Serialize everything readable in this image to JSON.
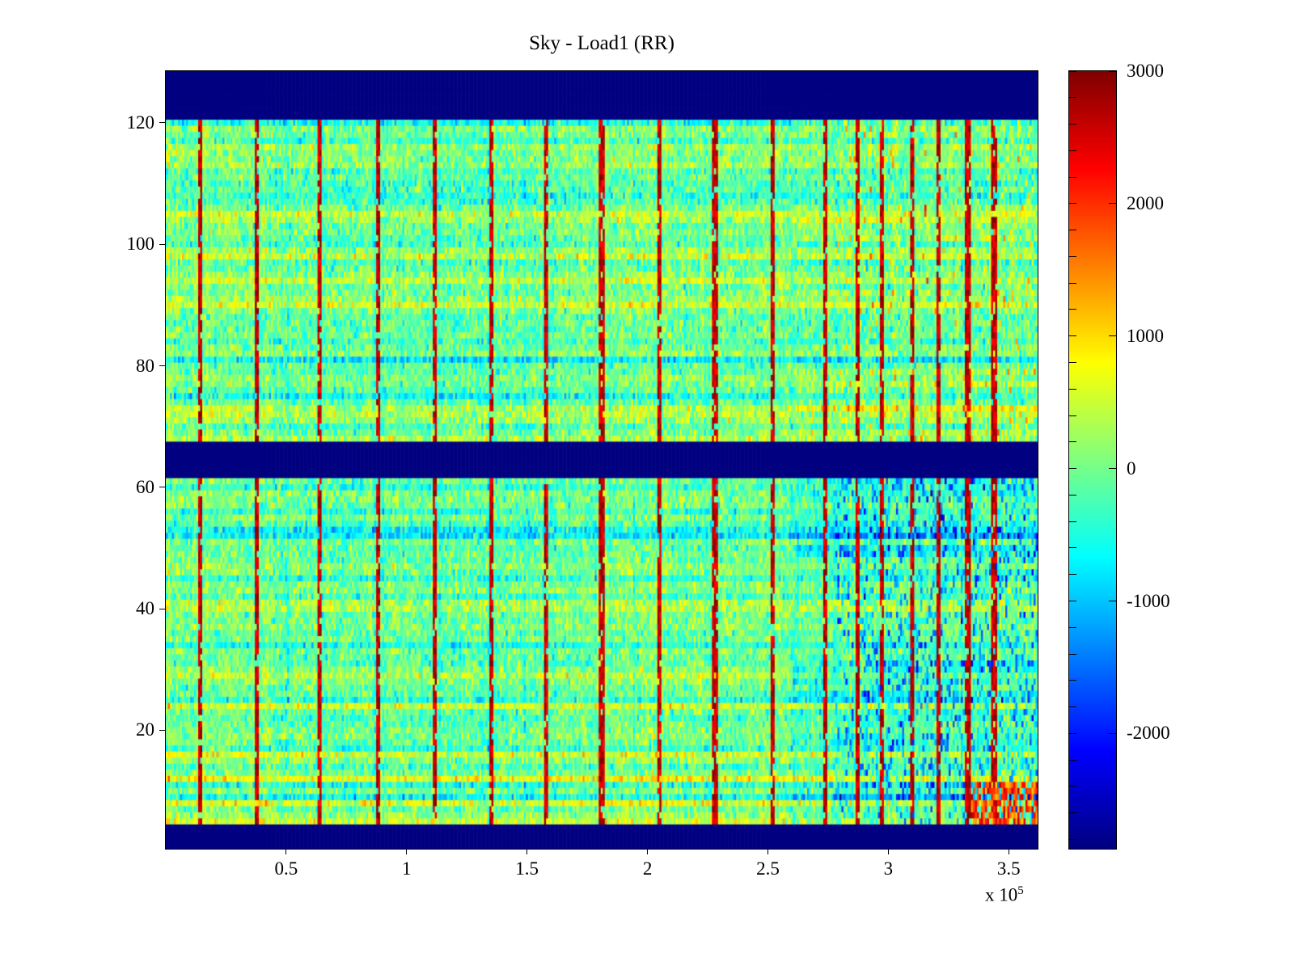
{
  "title": "Sky - Load1 (RR)",
  "colors": {
    "background": "#ffffff",
    "axis": "#000000",
    "text": "#000000",
    "nan_band": "#000080"
  },
  "chart_data": {
    "type": "heatmap",
    "title": "Sky - Load1 (RR)",
    "colormap": "jet",
    "colormap_stops": [
      "#000080",
      "#0000ff",
      "#00ffff",
      "#80ff80",
      "#ffff00",
      "#ff0000",
      "#800000"
    ],
    "x_range": [
      0,
      362000
    ],
    "y_range": [
      0.5,
      128.5
    ],
    "clim": [
      -2870,
      3000
    ],
    "grid": {
      "cols": 431,
      "rows": 128
    },
    "x_ticks": [
      {
        "value": 50000,
        "label": "0.5"
      },
      {
        "value": 100000,
        "label": "1"
      },
      {
        "value": 150000,
        "label": "1.5"
      },
      {
        "value": 200000,
        "label": "2"
      },
      {
        "value": 250000,
        "label": "2.5"
      },
      {
        "value": 300000,
        "label": "3"
      },
      {
        "value": 350000,
        "label": "3.5"
      }
    ],
    "x_exponent": {
      "prefix": "x 10",
      "power": "5"
    },
    "y_ticks": [
      {
        "value": 20,
        "label": "20"
      },
      {
        "value": 40,
        "label": "40"
      },
      {
        "value": 60,
        "label": "60"
      },
      {
        "value": 80,
        "label": "80"
      },
      {
        "value": 100,
        "label": "100"
      },
      {
        "value": 120,
        "label": "120"
      }
    ],
    "colorbar_ticks": [
      {
        "value": 3000,
        "label": "3000"
      },
      {
        "value": 2000,
        "label": "2000"
      },
      {
        "value": 1000,
        "label": "1000"
      },
      {
        "value": 0,
        "label": "0"
      },
      {
        "value": -1000,
        "label": "-1000"
      },
      {
        "value": -2000,
        "label": "-2000"
      }
    ],
    "colorbar_minor_tick_step": 200,
    "nan_bands_rows": [
      [
        1,
        4
      ],
      [
        62,
        67
      ],
      [
        121,
        128
      ]
    ],
    "vertical_streaks_x": [
      14000,
      38000,
      64000,
      88000,
      112000,
      135000,
      158000,
      181000,
      205000,
      228000,
      252000,
      274000,
      287000,
      297000,
      310000,
      321000,
      333000,
      344000
    ],
    "regions": {
      "mid_split_row": 62,
      "right_blue_x_min": 278000,
      "right_stripe_x_min": 260000,
      "bottom_right_hot": {
        "x_min": 334000,
        "row_min": 5,
        "row_max": 11
      }
    },
    "noise": {
      "seed": 1337,
      "cell_sigma": 330,
      "row_sigma": 150
    }
  }
}
